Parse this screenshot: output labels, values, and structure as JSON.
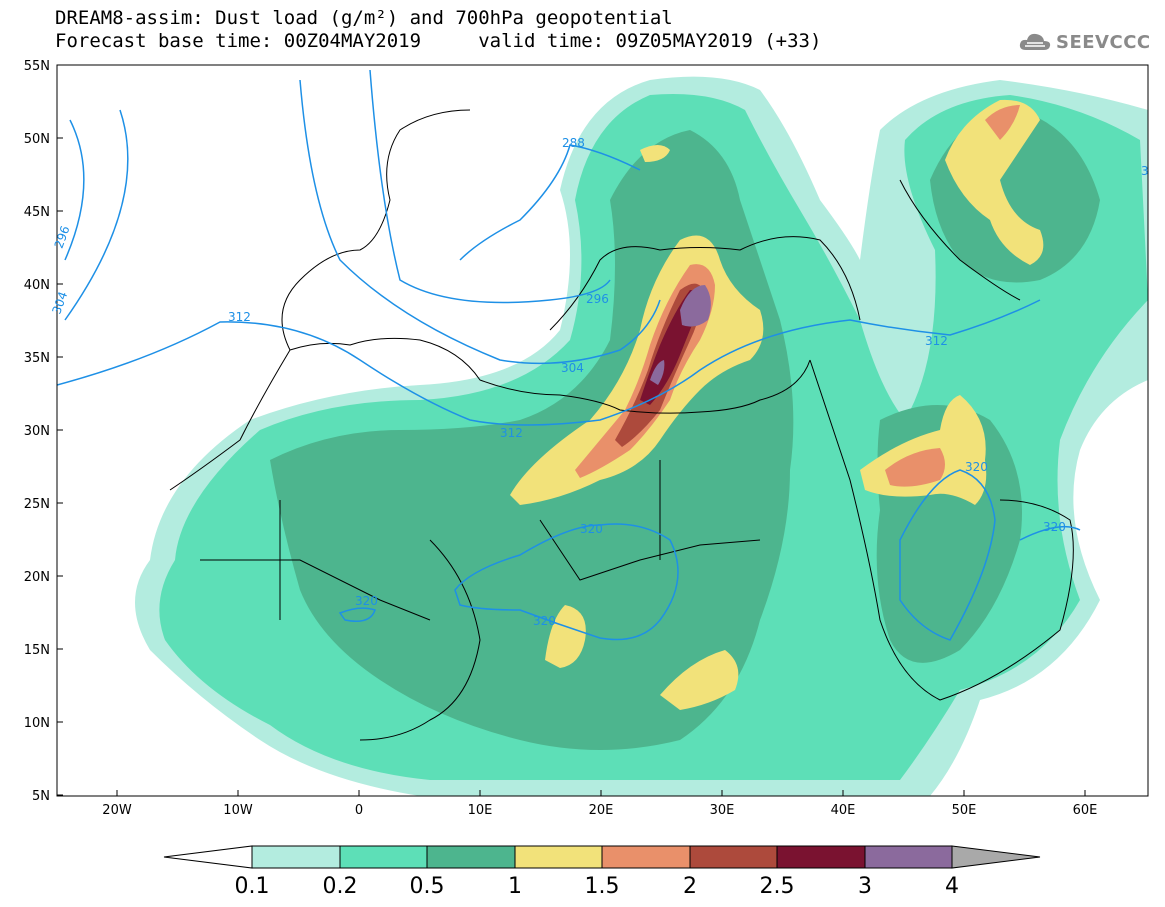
{
  "header": {
    "title_line1": "DREAM8-assim: Dust load (g/m²) and 700hPa geopotential",
    "title_line2": "Forecast base time: 00Z04MAY2019     valid time: 09Z05MAY2019 (+33)",
    "logo_text": "SEEVCCC"
  },
  "axes": {
    "lat_labels": [
      "55N",
      "50N",
      "45N",
      "40N",
      "35N",
      "30N",
      "25N",
      "20N",
      "15N",
      "10N",
      "5N"
    ],
    "lon_labels": [
      "20W",
      "10W",
      "0",
      "10E",
      "20E",
      "30E",
      "40E",
      "50E",
      "60E"
    ]
  },
  "contours": {
    "labels": [
      "296",
      "304",
      "312",
      "288",
      "296",
      "304",
      "312",
      "312",
      "320",
      "320",
      "320",
      "320",
      "320",
      "3"
    ]
  },
  "legend": {
    "labels": [
      "0.1",
      "0.2",
      "0.5",
      "1",
      "1.5",
      "2",
      "2.5",
      "3",
      "4"
    ],
    "colors": [
      "#b3ecdf",
      "#5ddfb7",
      "#4db58e",
      "#f2e27a",
      "#e9906a",
      "#ad4a3c",
      "#7a1230",
      "#8b6a9d",
      "#a9a9a9"
    ]
  },
  "colors": {
    "contour": "#1e90e6",
    "land_fill": "#ffffff",
    "dust_0_1": "#b3ecdf",
    "dust_0_2": "#5ddfb7",
    "dust_0_5": "#4db58e",
    "dust_1": "#f2e27a",
    "dust_1_5": "#e9906a",
    "dust_2": "#ad4a3c",
    "dust_2_5": "#7a1230",
    "dust_3": "#8b6a9d"
  }
}
